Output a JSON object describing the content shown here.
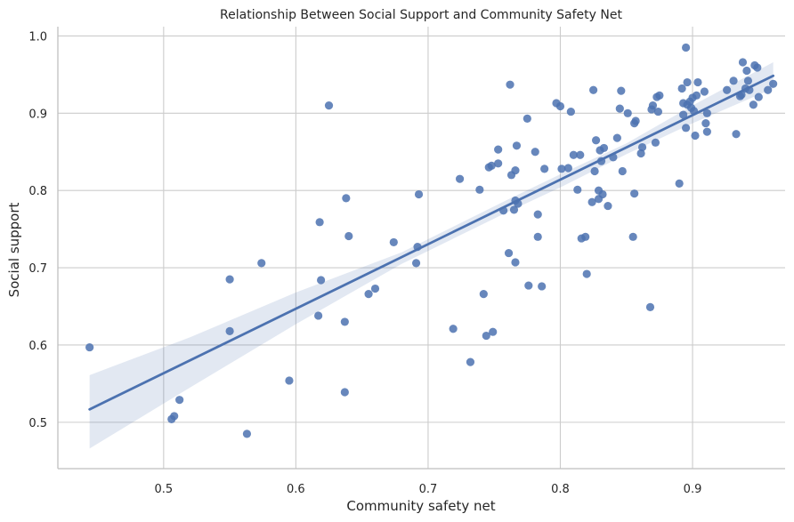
{
  "chart_data": {
    "type": "scatter",
    "title": "Relationship Between Social Support and Community Safety Net",
    "xlabel": "Community safety net",
    "ylabel": "Social support",
    "xlim": [
      0.42,
      0.97
    ],
    "ylim": [
      0.44,
      1.012
    ],
    "xticks": [
      0.5,
      0.6,
      0.7,
      0.8,
      0.9
    ],
    "xtick_labels": [
      "0.5",
      "0.6",
      "0.7",
      "0.8",
      "0.9"
    ],
    "yticks": [
      0.5,
      0.6,
      0.7,
      0.8,
      0.9,
      1.0
    ],
    "ytick_labels": [
      "0.5",
      "0.6",
      "0.7",
      "0.8",
      "0.9",
      "1.0"
    ],
    "grid": true,
    "colors": {
      "points": "#4c72b0",
      "line": "#4c72b0",
      "band": "#4c72b0"
    },
    "points": [
      [
        0.444,
        0.597
      ],
      [
        0.506,
        0.504
      ],
      [
        0.508,
        0.508
      ],
      [
        0.512,
        0.529
      ],
      [
        0.55,
        0.685
      ],
      [
        0.55,
        0.618
      ],
      [
        0.563,
        0.485
      ],
      [
        0.574,
        0.706
      ],
      [
        0.595,
        0.554
      ],
      [
        0.617,
        0.638
      ],
      [
        0.618,
        0.759
      ],
      [
        0.619,
        0.684
      ],
      [
        0.625,
        0.91
      ],
      [
        0.637,
        0.539
      ],
      [
        0.637,
        0.63
      ],
      [
        0.638,
        0.79
      ],
      [
        0.64,
        0.741
      ],
      [
        0.655,
        0.666
      ],
      [
        0.66,
        0.673
      ],
      [
        0.674,
        0.733
      ],
      [
        0.691,
        0.706
      ],
      [
        0.692,
        0.727
      ],
      [
        0.693,
        0.795
      ],
      [
        0.719,
        0.621
      ],
      [
        0.724,
        0.815
      ],
      [
        0.732,
        0.578
      ],
      [
        0.739,
        0.801
      ],
      [
        0.742,
        0.666
      ],
      [
        0.744,
        0.612
      ],
      [
        0.746,
        0.83
      ],
      [
        0.748,
        0.832
      ],
      [
        0.749,
        0.617
      ],
      [
        0.753,
        0.835
      ],
      [
        0.753,
        0.853
      ],
      [
        0.757,
        0.774
      ],
      [
        0.761,
        0.719
      ],
      [
        0.762,
        0.937
      ],
      [
        0.763,
        0.82
      ],
      [
        0.765,
        0.775
      ],
      [
        0.766,
        0.707
      ],
      [
        0.766,
        0.826
      ],
      [
        0.766,
        0.787
      ],
      [
        0.767,
        0.858
      ],
      [
        0.768,
        0.783
      ],
      [
        0.775,
        0.893
      ],
      [
        0.776,
        0.677
      ],
      [
        0.781,
        0.85
      ],
      [
        0.783,
        0.74
      ],
      [
        0.783,
        0.769
      ],
      [
        0.786,
        0.676
      ],
      [
        0.788,
        0.828
      ],
      [
        0.797,
        0.913
      ],
      [
        0.8,
        0.909
      ],
      [
        0.801,
        0.828
      ],
      [
        0.806,
        0.829
      ],
      [
        0.808,
        0.902
      ],
      [
        0.81,
        0.846
      ],
      [
        0.813,
        0.801
      ],
      [
        0.815,
        0.846
      ],
      [
        0.816,
        0.738
      ],
      [
        0.819,
        0.74
      ],
      [
        0.82,
        0.692
      ],
      [
        0.824,
        0.785
      ],
      [
        0.825,
        0.93
      ],
      [
        0.826,
        0.825
      ],
      [
        0.827,
        0.865
      ],
      [
        0.829,
        0.8
      ],
      [
        0.829,
        0.789
      ],
      [
        0.83,
        0.852
      ],
      [
        0.831,
        0.838
      ],
      [
        0.832,
        0.795
      ],
      [
        0.833,
        0.855
      ],
      [
        0.836,
        0.78
      ],
      [
        0.84,
        0.843
      ],
      [
        0.843,
        0.868
      ],
      [
        0.845,
        0.906
      ],
      [
        0.846,
        0.929
      ],
      [
        0.847,
        0.825
      ],
      [
        0.851,
        0.9
      ],
      [
        0.855,
        0.74
      ],
      [
        0.856,
        0.796
      ],
      [
        0.856,
        0.887
      ],
      [
        0.857,
        0.89
      ],
      [
        0.861,
        0.848
      ],
      [
        0.862,
        0.856
      ],
      [
        0.868,
        0.649
      ],
      [
        0.869,
        0.905
      ],
      [
        0.87,
        0.91
      ],
      [
        0.872,
        0.862
      ],
      [
        0.873,
        0.921
      ],
      [
        0.874,
        0.902
      ],
      [
        0.875,
        0.923
      ],
      [
        0.89,
        0.809
      ],
      [
        0.892,
        0.932
      ],
      [
        0.893,
        0.913
      ],
      [
        0.893,
        0.898
      ],
      [
        0.895,
        0.881
      ],
      [
        0.895,
        0.985
      ],
      [
        0.896,
        0.94
      ],
      [
        0.896,
        0.911
      ],
      [
        0.898,
        0.915
      ],
      [
        0.899,
        0.907
      ],
      [
        0.9,
        0.92
      ],
      [
        0.901,
        0.903
      ],
      [
        0.902,
        0.871
      ],
      [
        0.903,
        0.923
      ],
      [
        0.904,
        0.94
      ],
      [
        0.909,
        0.928
      ],
      [
        0.91,
        0.887
      ],
      [
        0.911,
        0.876
      ],
      [
        0.911,
        0.9
      ],
      [
        0.926,
        0.93
      ],
      [
        0.931,
        0.942
      ],
      [
        0.933,
        0.873
      ],
      [
        0.936,
        0.922
      ],
      [
        0.937,
        0.924
      ],
      [
        0.938,
        0.966
      ],
      [
        0.94,
        0.932
      ],
      [
        0.941,
        0.955
      ],
      [
        0.942,
        0.942
      ],
      [
        0.943,
        0.93
      ],
      [
        0.946,
        0.911
      ],
      [
        0.947,
        0.962
      ],
      [
        0.949,
        0.959
      ],
      [
        0.95,
        0.921
      ],
      [
        0.957,
        0.93
      ],
      [
        0.961,
        0.938
      ]
    ],
    "regression": {
      "slope": 0.835,
      "intercept": 0.146,
      "x_range": [
        0.444,
        0.961
      ],
      "ci_lower": [
        [
          0.444,
          0.466
        ],
        [
          0.52,
          0.545
        ],
        [
          0.6,
          0.627
        ],
        [
          0.68,
          0.705
        ],
        [
          0.76,
          0.772
        ],
        [
          0.8,
          0.804
        ],
        [
          0.85,
          0.847
        ],
        [
          0.9,
          0.887
        ],
        [
          0.961,
          0.932
        ]
      ],
      "ci_upper": [
        [
          0.444,
          0.561
        ],
        [
          0.52,
          0.61
        ],
        [
          0.6,
          0.668
        ],
        [
          0.68,
          0.72
        ],
        [
          0.76,
          0.788
        ],
        [
          0.8,
          0.821
        ],
        [
          0.85,
          0.861
        ],
        [
          0.9,
          0.91
        ],
        [
          0.961,
          0.966
        ]
      ]
    }
  }
}
